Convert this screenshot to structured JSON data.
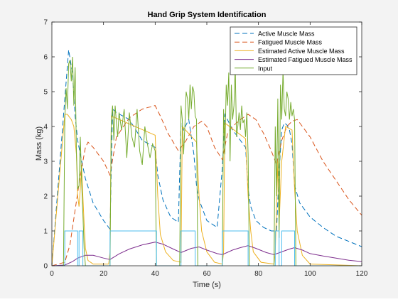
{
  "chart_data": {
    "type": "line",
    "title": "Hand Grip System Identification",
    "xlabel": "Time (s)",
    "ylabel": "Mass (kg)",
    "xlim": [
      0,
      120
    ],
    "ylim": [
      0,
      7
    ],
    "xticks": [
      0,
      20,
      40,
      60,
      80,
      100,
      120
    ],
    "yticks": [
      0,
      1,
      2,
      3,
      4,
      5,
      6,
      7
    ],
    "grid": false,
    "legend_position": "top-right",
    "series": [
      {
        "name": "Active Muscle Mass",
        "color": "#0072BD",
        "dash": "dashed",
        "x": [
          0,
          5,
          6.5,
          8,
          9,
          10,
          11,
          13,
          16,
          20,
          22.5,
          23.5,
          25,
          30,
          35,
          40,
          41,
          43,
          46,
          49,
          50,
          51,
          53,
          55,
          56,
          57,
          60,
          64,
          66,
          67,
          70,
          75,
          76,
          77,
          79,
          82,
          85,
          87,
          88,
          89,
          90,
          91,
          92,
          93,
          94,
          96,
          100,
          105,
          110,
          115,
          120
        ],
        "y": [
          0,
          4.8,
          6.2,
          5.5,
          4.3,
          3.6,
          3.2,
          2.5,
          1.8,
          1.3,
          1.05,
          4.5,
          4.4,
          4.2,
          3.6,
          3.4,
          2.6,
          1.9,
          1.4,
          1.25,
          4.1,
          3.9,
          4.2,
          3.2,
          2.3,
          1.9,
          1.3,
          1.1,
          2.8,
          4.35,
          3.9,
          3.4,
          2.2,
          1.7,
          1.3,
          1.1,
          1.0,
          1.0,
          2.7,
          3.9,
          4.1,
          4.05,
          3.9,
          3.5,
          2.3,
          1.8,
          1.4,
          1.1,
          0.85,
          0.7,
          0.55
        ]
      },
      {
        "name": "Fatigued Muscle Mass",
        "color": "#D95319",
        "dash": "dashed",
        "x": [
          0,
          5,
          7,
          9,
          11,
          13,
          14,
          16,
          20,
          22.5,
          25,
          30,
          35,
          40,
          42,
          45,
          49,
          52,
          55,
          58,
          60,
          63,
          66,
          68,
          70,
          73,
          76,
          79,
          82,
          85,
          87,
          89,
          91,
          93,
          95,
          100,
          105,
          110,
          115,
          120
        ],
        "y": [
          0,
          0.1,
          0.6,
          1.6,
          2.6,
          3.4,
          3.55,
          3.4,
          3.0,
          2.6,
          3.7,
          4.25,
          4.5,
          4.6,
          4.3,
          3.8,
          3.3,
          3.6,
          4.0,
          4.15,
          4.0,
          3.4,
          3.05,
          3.8,
          4.0,
          4.2,
          4.35,
          4.2,
          3.8,
          3.3,
          2.9,
          3.6,
          4.0,
          4.15,
          4.2,
          3.7,
          3.0,
          2.45,
          1.9,
          1.45
        ]
      },
      {
        "name": "Estimated Active Muscle Mass",
        "color": "#EDB120",
        "dash": "solid",
        "x": [
          0,
          5,
          6,
          7.5,
          8.5,
          9.5,
          10,
          10.5,
          11,
          11.5,
          12,
          12.5,
          13,
          14,
          16,
          22,
          22.5,
          23,
          40,
          41,
          42,
          44,
          47,
          50,
          50.5,
          56,
          57,
          58,
          60,
          63,
          66,
          66.5,
          67,
          75,
          76,
          77,
          78,
          81,
          86,
          86.5,
          87.5,
          88,
          89,
          90.5,
          93,
          94,
          95,
          97,
          100,
          120
        ],
        "y": [
          0,
          4.35,
          4.35,
          4.2,
          4.0,
          3.2,
          2.0,
          1.7,
          2.2,
          2.9,
          2.0,
          1.2,
          0.5,
          0.15,
          0.05,
          0.05,
          0.4,
          4.3,
          3.75,
          2.0,
          0.9,
          0.4,
          0.15,
          0.1,
          4.0,
          3.55,
          2.0,
          1.0,
          0.4,
          0.1,
          0.05,
          0.4,
          4.1,
          3.65,
          2.0,
          1.0,
          0.4,
          0.1,
          0.05,
          0.4,
          3.0,
          1.2,
          3.0,
          4.0,
          3.9,
          2.2,
          1.0,
          0.3,
          0.05,
          0
        ]
      },
      {
        "name": "Estimated Fatigued Muscle Mass",
        "color": "#7E2F8E",
        "dash": "solid",
        "x": [
          0,
          5,
          8,
          10,
          13,
          16,
          20,
          22.5,
          26,
          30,
          35,
          40,
          43,
          47,
          50,
          54,
          57,
          60,
          64,
          66,
          70,
          73,
          76,
          79,
          83,
          86,
          89,
          92,
          94,
          97,
          100,
          105,
          110,
          115,
          120
        ],
        "y": [
          0,
          0.02,
          0.12,
          0.22,
          0.3,
          0.3,
          0.22,
          0.18,
          0.34,
          0.48,
          0.6,
          0.68,
          0.62,
          0.48,
          0.38,
          0.5,
          0.54,
          0.45,
          0.35,
          0.32,
          0.45,
          0.52,
          0.58,
          0.5,
          0.38,
          0.32,
          0.4,
          0.48,
          0.52,
          0.45,
          0.35,
          0.28,
          0.22,
          0.16,
          0.12
        ]
      },
      {
        "name": "Input",
        "color": "#77AC30",
        "dash": "solid",
        "x": [
          0,
          4.5,
          5,
          5.5,
          6,
          6.5,
          7,
          7.5,
          8,
          8.5,
          9,
          9.5,
          10,
          10.5,
          11,
          11.5,
          12,
          12.5,
          13,
          22.5,
          23,
          23.5,
          24,
          24.5,
          25,
          25.5,
          26,
          27,
          28,
          29,
          30,
          31,
          32,
          33,
          34,
          35,
          36,
          37,
          38,
          39,
          40,
          40.5,
          49.5,
          50,
          50.5,
          51,
          51.5,
          52,
          52.5,
          53,
          53.5,
          54,
          54.5,
          55,
          55.5,
          56,
          56.5,
          66,
          66.5,
          67,
          67.5,
          68,
          68.5,
          69,
          69.5,
          70,
          70.5,
          71,
          71.5,
          72,
          72.5,
          73,
          73.5,
          74,
          74.5,
          75,
          75.5,
          76,
          76.5,
          86,
          86.5,
          87,
          87.5,
          88,
          88.5,
          89,
          89.5,
          90,
          90.5,
          91,
          91.5,
          92,
          92.5,
          93,
          93.5,
          94,
          94.5,
          120
        ],
        "y": [
          0,
          0,
          4.2,
          5.1,
          4.5,
          5.8,
          5.9,
          5.3,
          6.0,
          4.6,
          5.7,
          3.3,
          2.2,
          2.3,
          3.7,
          2.4,
          1.5,
          0.5,
          0,
          0,
          4.2,
          4.6,
          3.6,
          4.6,
          4.1,
          3.7,
          4.4,
          3.9,
          4.5,
          3.1,
          4.4,
          3.7,
          3.4,
          4.5,
          3.3,
          2.9,
          4.0,
          3.5,
          3.1,
          3.5,
          3.3,
          0,
          0,
          4.6,
          4.2,
          3.2,
          4.0,
          5.0,
          4.8,
          4.2,
          5.2,
          4.5,
          5.15,
          5.0,
          4.3,
          4.2,
          0,
          0,
          4.5,
          3.2,
          5.2,
          4.6,
          5.55,
          3.0,
          5.2,
          4.2,
          4.6,
          5.7,
          3.7,
          4.0,
          4.4,
          3.9,
          4.6,
          4.1,
          4.2,
          3.7,
          4.4,
          3.2,
          0,
          0,
          4.0,
          2.0,
          4.8,
          0.8,
          5.2,
          4.2,
          5.6,
          4.5,
          4.3,
          5.0,
          4.8,
          4.2,
          4.7,
          4.3,
          4.5,
          4.2,
          0,
          0
        ]
      },
      {
        "name": "",
        "color": "#4DBEEE",
        "dash": "solid",
        "x": [
          0,
          5,
          5,
          10,
          10,
          10.5,
          10.5,
          12,
          12,
          22.5,
          22.5,
          40.5,
          40.5,
          50,
          50,
          55.5,
          55.5,
          66,
          66,
          67,
          67,
          76,
          76,
          86.5,
          86.5,
          88,
          88,
          89,
          89,
          94,
          94,
          120
        ],
        "y": [
          0,
          0,
          1,
          1,
          0,
          0,
          1,
          1,
          0,
          0,
          1,
          1,
          0,
          0,
          1,
          1,
          0,
          0,
          1,
          1,
          1,
          1,
          0,
          0,
          1,
          1,
          0,
          0,
          1,
          1,
          0,
          0
        ]
      }
    ]
  }
}
